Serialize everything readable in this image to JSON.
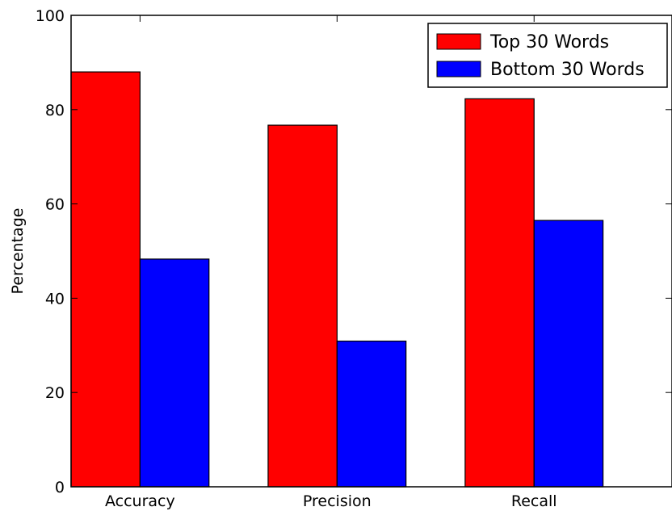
{
  "chart_data": {
    "type": "bar",
    "title": "",
    "xlabel": "",
    "ylabel": "Percentage",
    "categories": [
      "Accuracy",
      "Precision",
      "Recall"
    ],
    "ylim": [
      0,
      100
    ],
    "yticks": [
      0,
      20,
      40,
      60,
      80,
      100
    ],
    "grid": false,
    "legend": "top-right",
    "series": [
      {
        "name": "Top 30 Words",
        "color": "#ff0000",
        "values": [
          88,
          76.7,
          82.3
        ]
      },
      {
        "name": "Bottom 30 Words",
        "color": "#0000ff",
        "values": [
          48.3,
          30.9,
          56.5
        ]
      }
    ]
  }
}
